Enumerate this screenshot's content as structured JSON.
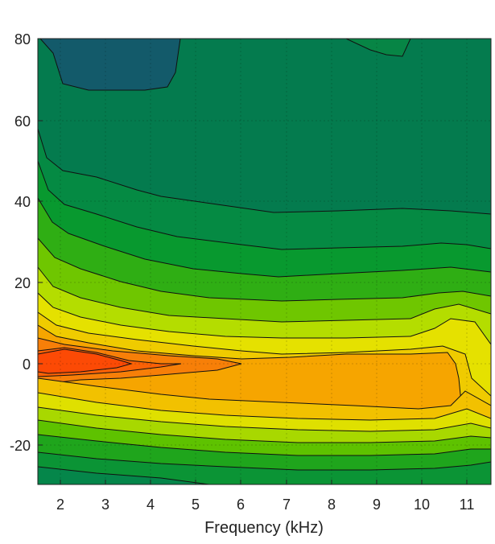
{
  "chart_data": {
    "type": "heatmap",
    "title": "",
    "xlabel": "Frequency (kHz)",
    "ylabel": "",
    "xlim": [
      1.5,
      11.5
    ],
    "ylim": [
      -30,
      80
    ],
    "x_ticks": [
      "2",
      "3",
      "4",
      "5",
      "6",
      "7",
      "8",
      "9",
      "10",
      "11"
    ],
    "y_ticks": [
      "80",
      "60",
      "40",
      "20",
      "0",
      "-20"
    ],
    "x_tick_values": [
      2,
      3,
      4,
      5,
      6,
      7,
      8,
      9,
      10,
      11
    ],
    "y_tick_values": [
      80,
      60,
      40,
      20,
      0,
      -20
    ],
    "grid": true,
    "colorscale": [
      "#135a6a",
      "#047b4e",
      "#0a9a2d",
      "#5ec200",
      "#c0de00",
      "#e9e100",
      "#f2c100",
      "#f79a00",
      "#f9700a",
      "#fc4f06"
    ]
  }
}
